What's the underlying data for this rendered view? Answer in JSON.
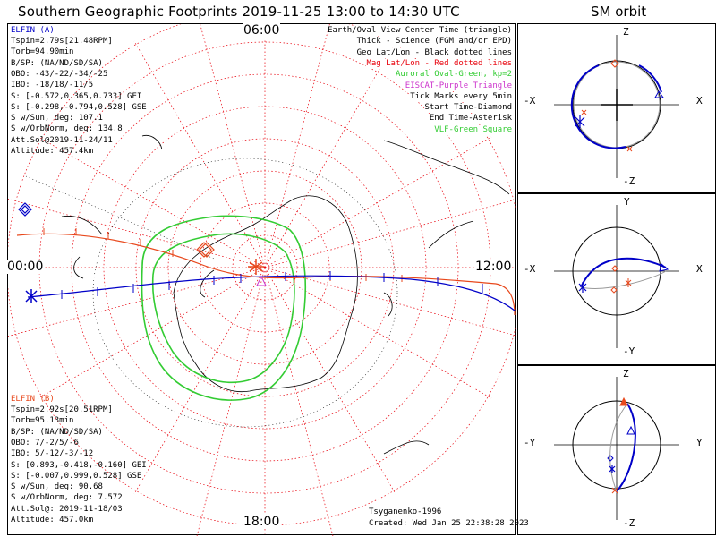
{
  "title": "Southern Geographic Footprints 2019-11-25 13:00 to 14:30 UTC",
  "orbit_title": "SM orbit",
  "clock_labels": {
    "top": "06:00",
    "left": "00:00",
    "right": "12:00",
    "bottom": "18:00"
  },
  "elfin_a": {
    "name": "ELFIN (A)",
    "lines": [
      "Tspin=2.79s[21.48RPM]",
      "Torb=94.90min",
      "B/SP: (NA/ND/SD/SA)",
      "OBO: -43/-22/-34/-25",
      "IBO: -18/18/-11/5",
      "S: [-0.572,0.365,0.733] GEI",
      "S: [-0.298,-0.794,0.528] GSE",
      "S w/Sun, deg: 107.1",
      "S w/OrbNorm, deg: 134.8",
      "Att.Sol@2019-11-24/11",
      "Altitude: 457.4km"
    ]
  },
  "elfin_b": {
    "name": "ELFIN (B)",
    "lines": [
      "Tspin=2.92s[20.51RPM]",
      "Torb=95.13min",
      "B/SP: (NA/ND/SD/SA)",
      "OBO: 7/-2/5/-6",
      "IBO: 5/-12/-3/-12",
      "S: [0.893,-0.418,-0.160] GEI",
      "S: [-0.007,0.999,0.528] GSE",
      "S w/Sun, deg: 90.68",
      "S w/OrbNorm, deg: 7.572",
      "Att.Sol@: 2019-11-18/03",
      "Altitude: 457.0km"
    ]
  },
  "legend": [
    {
      "text": "Earth/Oval View Center Time (triangle)",
      "color": "#000000"
    },
    {
      "text": "Thick - Science (FGM and/or EPD)",
      "color": "#000000"
    },
    {
      "text": "Geo Lat/Lon - Black dotted lines",
      "color": "#000000"
    },
    {
      "text": "Mag Lat/Lon - Red dotted lines",
      "color": "#e8000b"
    },
    {
      "text": "Auroral Oval-Green, kp=2",
      "color": "#33cc33"
    },
    {
      "text": "EISCAT-Purple Triangle",
      "color": "#cc33cc"
    },
    {
      "text": "Tick Marks every 5min",
      "color": "#000000"
    },
    {
      "text": "Start Time-Diamond",
      "color": "#000000"
    },
    {
      "text": "End Time-Asterisk",
      "color": "#000000"
    },
    {
      "text": "VLF-Green Square",
      "color": "#33cc33"
    }
  ],
  "credits": {
    "author": "Tsyganenko-1996",
    "created": "Created: Wed Jan 25 22:38:28 2023"
  },
  "orbit_panels": [
    {
      "top": "Z",
      "bottom": "-Z",
      "left": "-X",
      "right": "X"
    },
    {
      "top": "Y",
      "bottom": "-Y",
      "left": "-X",
      "right": "X"
    },
    {
      "top": "Z",
      "bottom": "-Z",
      "left": "-Y",
      "right": "Y"
    }
  ],
  "colors": {
    "elfin_a": "#0000c8",
    "elfin_b": "#e8481c",
    "aurora": "#33cc33",
    "grid": "#e8000b",
    "eiscat": "#cc33cc"
  }
}
